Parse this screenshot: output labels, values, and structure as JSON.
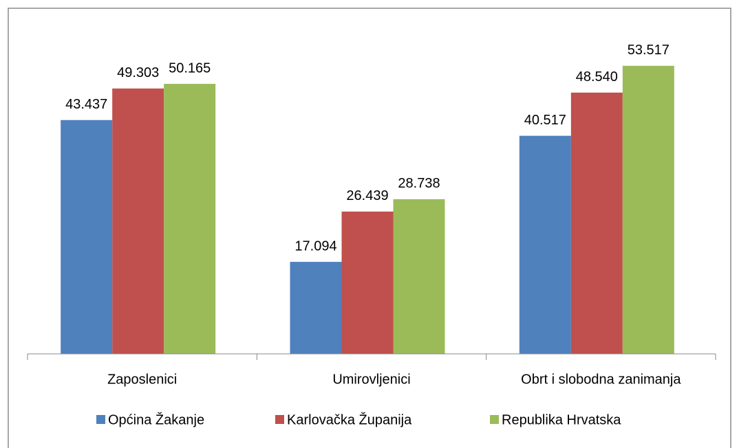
{
  "chart_data": {
    "type": "bar",
    "categories": [
      "Zaposlenici",
      "Umirovljenici",
      "Obrt i slobodna zanimanja"
    ],
    "series": [
      {
        "name": "Općina Žakanje",
        "color": "#4f81bd",
        "values": [
          43.437,
          17.094,
          40.517
        ],
        "value_labels": [
          "43.437",
          "17.094",
          "40.517"
        ]
      },
      {
        "name": "Karlovačka Županija",
        "color": "#c0504d",
        "values": [
          49.303,
          26.439,
          48.54
        ],
        "value_labels": [
          "49.303",
          "26.439",
          "48.540"
        ]
      },
      {
        "name": "Republika Hrvatska",
        "color": "#9bbb59",
        "values": [
          50.165,
          28.738,
          53.517
        ],
        "value_labels": [
          "50.165",
          "28.738",
          "53.517"
        ]
      }
    ],
    "ylim": [
      0,
      60
    ],
    "legend": "bottom"
  }
}
